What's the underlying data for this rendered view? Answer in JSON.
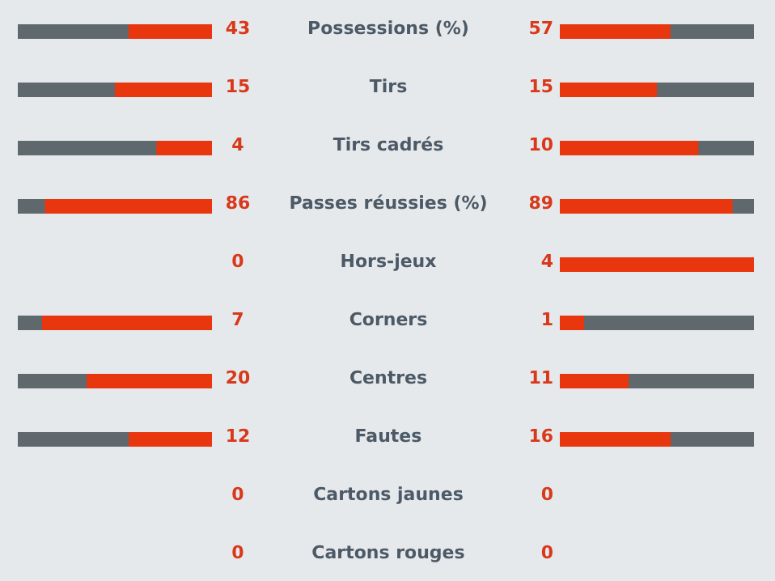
{
  "chart_data": {
    "type": "other",
    "categories": [
      "Possessions (%)",
      "Tirs",
      "Tirs cadrés",
      "Passes réussies (%)",
      "Hors-jeux",
      "Corners",
      "Centres",
      "Fautes",
      "Cartons jaunes",
      "Cartons rouges"
    ],
    "data_labels": true,
    "series": [
      {
        "color": "#e8370f",
        "values": [
          43,
          15,
          4,
          86,
          0,
          7,
          20,
          12,
          0,
          0
        ]
      },
      {
        "color": "#e8370f",
        "values": [
          57,
          15,
          10,
          89,
          4,
          1,
          11,
          16,
          0,
          0
        ]
      }
    ]
  }
}
